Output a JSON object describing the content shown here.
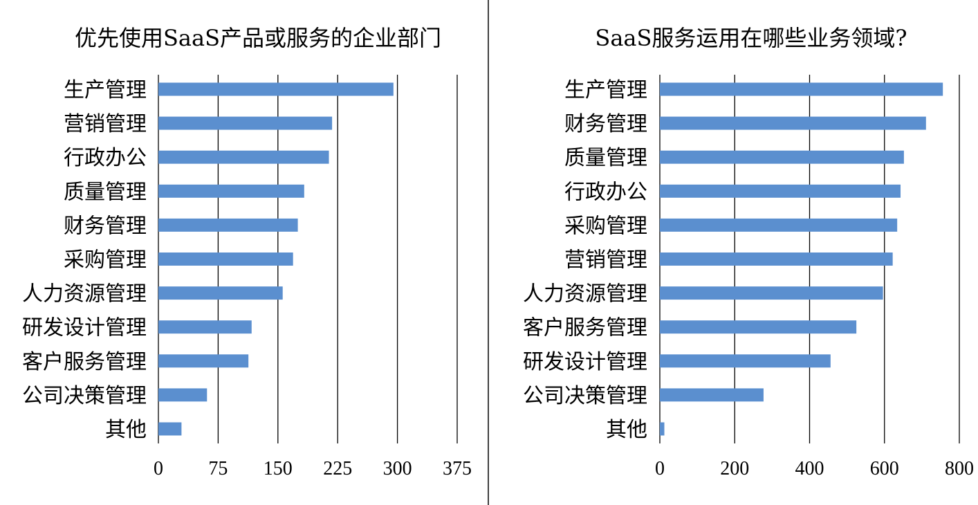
{
  "chart_data": [
    {
      "type": "bar",
      "orientation": "horizontal",
      "title": "优先使用SaaS产品或服务的企业部门",
      "xlabel": "",
      "ylabel": "",
      "categories": [
        "生产管理",
        "营销管理",
        "行政办公",
        "质量管理",
        "财务管理",
        "采购管理",
        "人力资源管理",
        "研发设计管理",
        "客户服务管理",
        "公司决策管理",
        "其他"
      ],
      "values": [
        295,
        218,
        214,
        183,
        175,
        169,
        156,
        117,
        113,
        61,
        29
      ],
      "xlim": [
        0,
        375
      ],
      "ticks": [
        "0",
        "75",
        "150",
        "225",
        "300",
        "375"
      ],
      "tick_values": [
        0,
        75,
        150,
        225,
        300,
        375
      ],
      "grid": true,
      "legend": "none",
      "bar_color": "#5b8fcf"
    },
    {
      "type": "bar",
      "orientation": "horizontal",
      "title": "SaaS服务运用在哪些业务领域?",
      "xlabel": "",
      "ylabel": "",
      "categories": [
        "生产管理",
        "财务管理",
        "质量管理",
        "行政办公",
        "采购管理",
        "营销管理",
        "人力资源管理",
        "客户服务管理",
        "研发设计管理",
        "公司决策管理",
        "其他"
      ],
      "values": [
        756,
        711,
        652,
        643,
        634,
        622,
        596,
        525,
        456,
        277,
        12
      ],
      "xlim": [
        0,
        800
      ],
      "ticks": [
        "0",
        "200",
        "400",
        "600",
        "800"
      ],
      "tick_values": [
        0,
        200,
        400,
        600,
        800
      ],
      "grid": true,
      "legend": "none",
      "bar_color": "#5b8fcf"
    }
  ]
}
